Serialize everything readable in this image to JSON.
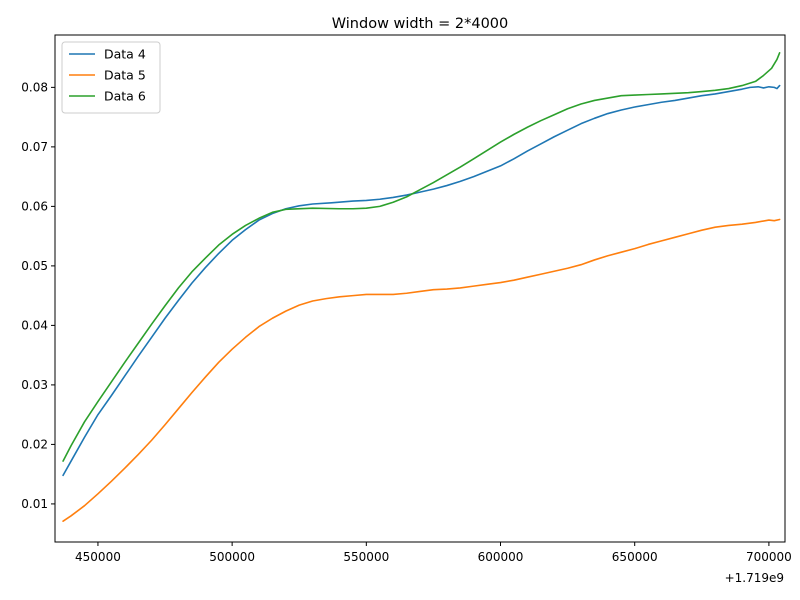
{
  "chart_data": {
    "type": "line",
    "title": "Window width = 2*4000",
    "xlabel": "",
    "ylabel": "",
    "x_offset_label": "+1.719e9",
    "xlim": [
      1719434000,
      1719706000
    ],
    "ylim": [
      0.0036,
      0.0888
    ],
    "xticks": [
      {
        "value": 1719450000,
        "label": "450000"
      },
      {
        "value": 1719500000,
        "label": "500000"
      },
      {
        "value": 1719550000,
        "label": "550000"
      },
      {
        "value": 1719600000,
        "label": "600000"
      },
      {
        "value": 1719650000,
        "label": "650000"
      },
      {
        "value": 1719700000,
        "label": "700000"
      }
    ],
    "yticks": [
      {
        "value": 0.01,
        "label": "0.01"
      },
      {
        "value": 0.02,
        "label": "0.02"
      },
      {
        "value": 0.03,
        "label": "0.03"
      },
      {
        "value": 0.04,
        "label": "0.04"
      },
      {
        "value": 0.05,
        "label": "0.05"
      },
      {
        "value": 0.06,
        "label": "0.06"
      },
      {
        "value": 0.07,
        "label": "0.07"
      },
      {
        "value": 0.08,
        "label": "0.08"
      }
    ],
    "grid": false,
    "legend_position": "top-left",
    "series": [
      {
        "name": "Data 4",
        "color": "#1f77b4",
        "points": [
          [
            1719437000,
            0.0148
          ],
          [
            1719440000,
            0.0172
          ],
          [
            1719445000,
            0.0212
          ],
          [
            1719450000,
            0.025
          ],
          [
            1719455000,
            0.0282
          ],
          [
            1719460000,
            0.0315
          ],
          [
            1719465000,
            0.0348
          ],
          [
            1719470000,
            0.038
          ],
          [
            1719475000,
            0.0412
          ],
          [
            1719480000,
            0.0442
          ],
          [
            1719485000,
            0.0471
          ],
          [
            1719490000,
            0.0497
          ],
          [
            1719495000,
            0.0521
          ],
          [
            1719500000,
            0.0543
          ],
          [
            1719505000,
            0.0561
          ],
          [
            1719510000,
            0.0577
          ],
          [
            1719515000,
            0.0588
          ],
          [
            1719520000,
            0.0596
          ],
          [
            1719525000,
            0.0601
          ],
          [
            1719530000,
            0.0604
          ],
          [
            1719537000,
            0.0606
          ],
          [
            1719545000,
            0.0609
          ],
          [
            1719550000,
            0.061
          ],
          [
            1719555000,
            0.0612
          ],
          [
            1719560000,
            0.0615
          ],
          [
            1719565000,
            0.0619
          ],
          [
            1719570000,
            0.0624
          ],
          [
            1719575000,
            0.0629
          ],
          [
            1719580000,
            0.0635
          ],
          [
            1719585000,
            0.0642
          ],
          [
            1719590000,
            0.065
          ],
          [
            1719595000,
            0.0659
          ],
          [
            1719600000,
            0.0668
          ],
          [
            1719605000,
            0.068
          ],
          [
            1719610000,
            0.0693
          ],
          [
            1719615000,
            0.0705
          ],
          [
            1719620000,
            0.0717
          ],
          [
            1719625000,
            0.0728
          ],
          [
            1719630000,
            0.0739
          ],
          [
            1719635000,
            0.0748
          ],
          [
            1719640000,
            0.0756
          ],
          [
            1719645000,
            0.0762
          ],
          [
            1719650000,
            0.0767
          ],
          [
            1719655000,
            0.0771
          ],
          [
            1719660000,
            0.0775
          ],
          [
            1719665000,
            0.0778
          ],
          [
            1719670000,
            0.0782
          ],
          [
            1719675000,
            0.0786
          ],
          [
            1719680000,
            0.0789
          ],
          [
            1719685000,
            0.0793
          ],
          [
            1719690000,
            0.0797
          ],
          [
            1719693000,
            0.08
          ],
          [
            1719696000,
            0.0801
          ],
          [
            1719698000,
            0.0799
          ],
          [
            1719700000,
            0.0801
          ],
          [
            1719702000,
            0.08
          ],
          [
            1719703000,
            0.0798
          ],
          [
            1719704000,
            0.0803
          ]
        ]
      },
      {
        "name": "Data 5",
        "color": "#ff7f0e",
        "points": [
          [
            1719437000,
            0.0071
          ],
          [
            1719440000,
            0.008
          ],
          [
            1719445000,
            0.0097
          ],
          [
            1719450000,
            0.0117
          ],
          [
            1719455000,
            0.0138
          ],
          [
            1719460000,
            0.016
          ],
          [
            1719465000,
            0.0183
          ],
          [
            1719470000,
            0.0207
          ],
          [
            1719475000,
            0.0233
          ],
          [
            1719480000,
            0.026
          ],
          [
            1719485000,
            0.0287
          ],
          [
            1719490000,
            0.0313
          ],
          [
            1719495000,
            0.0338
          ],
          [
            1719500000,
            0.036
          ],
          [
            1719505000,
            0.038
          ],
          [
            1719510000,
            0.0398
          ],
          [
            1719515000,
            0.0412
          ],
          [
            1719520000,
            0.0424
          ],
          [
            1719525000,
            0.0434
          ],
          [
            1719530000,
            0.0441
          ],
          [
            1719535000,
            0.0445
          ],
          [
            1719540000,
            0.0448
          ],
          [
            1719545000,
            0.045
          ],
          [
            1719550000,
            0.0452
          ],
          [
            1719560000,
            0.0452
          ],
          [
            1719565000,
            0.0454
          ],
          [
            1719570000,
            0.0457
          ],
          [
            1719575000,
            0.046
          ],
          [
            1719580000,
            0.0461
          ],
          [
            1719585000,
            0.0463
          ],
          [
            1719590000,
            0.0466
          ],
          [
            1719595000,
            0.0469
          ],
          [
            1719600000,
            0.0472
          ],
          [
            1719605000,
            0.0476
          ],
          [
            1719610000,
            0.0481
          ],
          [
            1719615000,
            0.0486
          ],
          [
            1719620000,
            0.0491
          ],
          [
            1719625000,
            0.0496
          ],
          [
            1719630000,
            0.0502
          ],
          [
            1719635000,
            0.051
          ],
          [
            1719640000,
            0.0517
          ],
          [
            1719645000,
            0.0523
          ],
          [
            1719650000,
            0.0529
          ],
          [
            1719655000,
            0.0536
          ],
          [
            1719660000,
            0.0542
          ],
          [
            1719665000,
            0.0548
          ],
          [
            1719670000,
            0.0554
          ],
          [
            1719675000,
            0.056
          ],
          [
            1719680000,
            0.0565
          ],
          [
            1719685000,
            0.0568
          ],
          [
            1719690000,
            0.057
          ],
          [
            1719695000,
            0.0573
          ],
          [
            1719700000,
            0.0577
          ],
          [
            1719702000,
            0.0576
          ],
          [
            1719704000,
            0.0578
          ]
        ]
      },
      {
        "name": "Data 6",
        "color": "#2ca02c",
        "points": [
          [
            1719437000,
            0.0172
          ],
          [
            1719440000,
            0.0198
          ],
          [
            1719445000,
            0.0238
          ],
          [
            1719450000,
            0.0272
          ],
          [
            1719455000,
            0.0305
          ],
          [
            1719460000,
            0.0338
          ],
          [
            1719465000,
            0.037
          ],
          [
            1719470000,
            0.0402
          ],
          [
            1719475000,
            0.0433
          ],
          [
            1719480000,
            0.0463
          ],
          [
            1719485000,
            0.049
          ],
          [
            1719490000,
            0.0513
          ],
          [
            1719495000,
            0.0535
          ],
          [
            1719500000,
            0.0553
          ],
          [
            1719505000,
            0.0568
          ],
          [
            1719510000,
            0.058
          ],
          [
            1719515000,
            0.059
          ],
          [
            1719520000,
            0.0595
          ],
          [
            1719530000,
            0.0597
          ],
          [
            1719540000,
            0.0596
          ],
          [
            1719545000,
            0.0596
          ],
          [
            1719550000,
            0.0597
          ],
          [
            1719555000,
            0.06
          ],
          [
            1719560000,
            0.0607
          ],
          [
            1719565000,
            0.0616
          ],
          [
            1719570000,
            0.0628
          ],
          [
            1719575000,
            0.064
          ],
          [
            1719580000,
            0.0653
          ],
          [
            1719585000,
            0.0666
          ],
          [
            1719590000,
            0.068
          ],
          [
            1719595000,
            0.0694
          ],
          [
            1719600000,
            0.0708
          ],
          [
            1719605000,
            0.0721
          ],
          [
            1719610000,
            0.0733
          ],
          [
            1719615000,
            0.0744
          ],
          [
            1719620000,
            0.0754
          ],
          [
            1719625000,
            0.0764
          ],
          [
            1719630000,
            0.0772
          ],
          [
            1719635000,
            0.0778
          ],
          [
            1719640000,
            0.0782
          ],
          [
            1719645000,
            0.0786
          ],
          [
            1719650000,
            0.0787
          ],
          [
            1719655000,
            0.0788
          ],
          [
            1719660000,
            0.0789
          ],
          [
            1719665000,
            0.079
          ],
          [
            1719670000,
            0.0791
          ],
          [
            1719675000,
            0.0793
          ],
          [
            1719680000,
            0.0795
          ],
          [
            1719685000,
            0.0798
          ],
          [
            1719690000,
            0.0803
          ],
          [
            1719695000,
            0.081
          ],
          [
            1719698000,
            0.082
          ],
          [
            1719701000,
            0.0832
          ],
          [
            1719703000,
            0.0847
          ],
          [
            1719704000,
            0.0858
          ]
        ]
      }
    ]
  }
}
